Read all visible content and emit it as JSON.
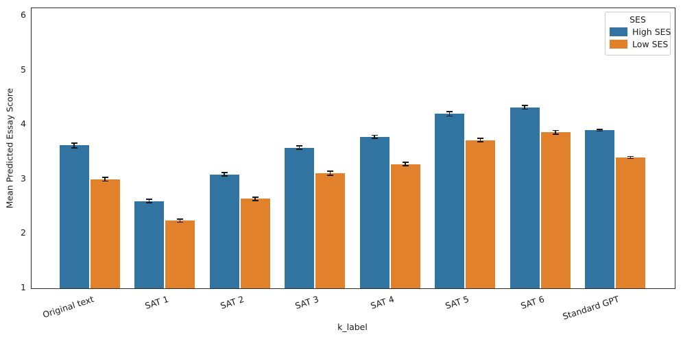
{
  "figure": {
    "ylabel": "Mean Predicted Essay Score",
    "xlabel": "k_label",
    "background_color": "#ffffff",
    "spine_color": "#2b2b2b",
    "errorbar_color": "#1a1a1a"
  },
  "legend": {
    "title": "SES",
    "items": [
      {
        "label": "High SES",
        "color": "#3274a1"
      },
      {
        "label": "Low SES",
        "color": "#e1812c"
      }
    ]
  },
  "chart_data": {
    "type": "bar",
    "title": "",
    "xlabel": "k_label",
    "ylabel": "Mean Predicted Essay Score",
    "categories": [
      "Original text",
      "SAT 1",
      "SAT 2",
      "SAT 3",
      "SAT 4",
      "SAT 5",
      "SAT 6",
      "Standard GPT"
    ],
    "series": [
      {
        "name": "High SES",
        "color": "#3274a1",
        "values": [
          3.62,
          2.6,
          3.09,
          3.58,
          3.78,
          4.2,
          4.32,
          3.9
        ],
        "errors": [
          0.045,
          0.03,
          0.03,
          0.03,
          0.03,
          0.04,
          0.035,
          0.015
        ]
      },
      {
        "name": "Low SES",
        "color": "#e1812c",
        "values": [
          3.0,
          2.24,
          2.64,
          3.11,
          3.28,
          3.72,
          3.86,
          3.4
        ],
        "errors": [
          0.035,
          0.03,
          0.03,
          0.035,
          0.035,
          0.03,
          0.035,
          0.02
        ]
      }
    ],
    "ylim": [
      1,
      6.14
    ],
    "yticks": [
      1,
      2,
      3,
      4,
      5,
      6
    ],
    "grid": false,
    "legend_position": "upper right",
    "legend_title": "SES",
    "xtick_rotation_deg": 18,
    "error_bars": true
  }
}
